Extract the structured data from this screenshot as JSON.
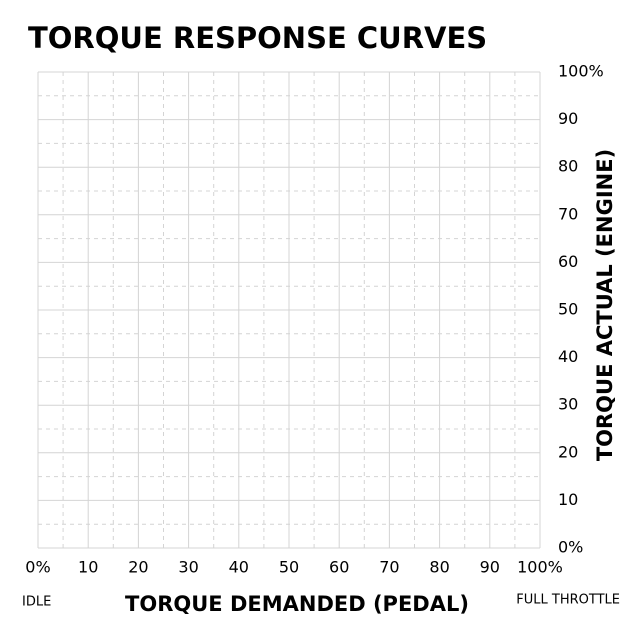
{
  "chart_data": {
    "type": "line",
    "title": "TORQUE RESPONSE CURVES",
    "x_label": "TORQUE DEMANDED (PEDAL)",
    "y_label": "TORQUE ACTUAL (ENGINE)",
    "x_start_label": "IDLE",
    "x_end_label": "FULL THROTTLE",
    "series": [],
    "xlim": [
      0,
      100
    ],
    "ylim": [
      0,
      100
    ],
    "xticks": [
      {
        "value": 0,
        "label": "0%"
      },
      10,
      20,
      30,
      40,
      50,
      60,
      70,
      80,
      90,
      {
        "value": 100,
        "label": "100%"
      }
    ],
    "yticks": [
      {
        "value": 0,
        "label": "0%"
      },
      10,
      20,
      30,
      40,
      50,
      60,
      70,
      80,
      90,
      {
        "value": 100,
        "label": "100%"
      }
    ],
    "minor_xticks": [
      5,
      15,
      25,
      35,
      45,
      55,
      65,
      75,
      85,
      95
    ],
    "minor_yticks": [
      5,
      15,
      25,
      35,
      45,
      55,
      65,
      75,
      85,
      95
    ],
    "grid": true,
    "y_axis_side": "right"
  }
}
